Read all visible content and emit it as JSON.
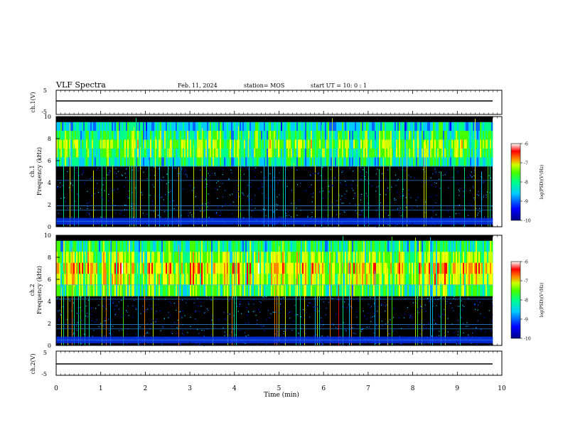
{
  "header": {
    "title": "VLF Spectra",
    "date": "Feb. 11, 2024",
    "station": "station= MOS",
    "start": "start  UT =   10: 0   : 1"
  },
  "chart_data": [
    {
      "type": "line",
      "name": "ch1-waveform",
      "ylabel": "ch.1(V)",
      "ylim": [
        -5,
        5
      ],
      "yticks": [
        "5",
        "-5"
      ],
      "xlim": [
        0,
        10
      ],
      "level": 0
    },
    {
      "type": "heatmap",
      "name": "ch1-spectrogram",
      "ylabel": [
        "ch.1",
        "Frequency (kHz)"
      ],
      "ylim": [
        0,
        10
      ],
      "yticks": [
        "0",
        "2",
        "4",
        "6",
        "8",
        "10"
      ],
      "xlim": [
        0,
        10
      ],
      "x_end": 9.8,
      "colorbar": {
        "label": "log(PSD)(V²/Hz)",
        "range": [
          -10,
          -6
        ],
        "ticks": [
          "-6",
          "-7",
          "-8",
          "-9",
          "-10"
        ]
      },
      "colors": [
        "#000088",
        "#0000ff",
        "#0066ff",
        "#00ccff",
        "#00ff88",
        "#44ff00",
        "#ccff00",
        "#ffff00",
        "#ff8800",
        "#ff0000",
        "#ffffff"
      ],
      "band_khz": [
        5.5,
        9.5
      ]
    },
    {
      "type": "heatmap",
      "name": "ch2-spectrogram",
      "ylabel": [
        "ch.2",
        "Frequency (kHz)"
      ],
      "ylim": [
        0,
        10
      ],
      "yticks": [
        "0",
        "2",
        "4",
        "6",
        "8",
        "10"
      ],
      "xlim": [
        0,
        10
      ],
      "x_end": 9.8,
      "colorbar": {
        "label": "log(PSD)(V²/Hz)",
        "range": [
          -10,
          -6
        ],
        "ticks": [
          "-6",
          "-7",
          "-8",
          "-9",
          "-10"
        ]
      },
      "band_khz": [
        4.5,
        9.5
      ]
    },
    {
      "type": "line",
      "name": "ch2-waveform",
      "ylabel": "ch.2(V)",
      "ylim": [
        -5,
        5
      ],
      "yticks": [
        "5",
        "-5"
      ],
      "xlim": [
        0,
        10
      ],
      "level": 0
    }
  ],
  "xaxis": {
    "label": "Time (min)",
    "ticks": [
      "0",
      "1",
      "2",
      "3",
      "4",
      "5",
      "6",
      "7",
      "8",
      "9",
      "10"
    ]
  }
}
